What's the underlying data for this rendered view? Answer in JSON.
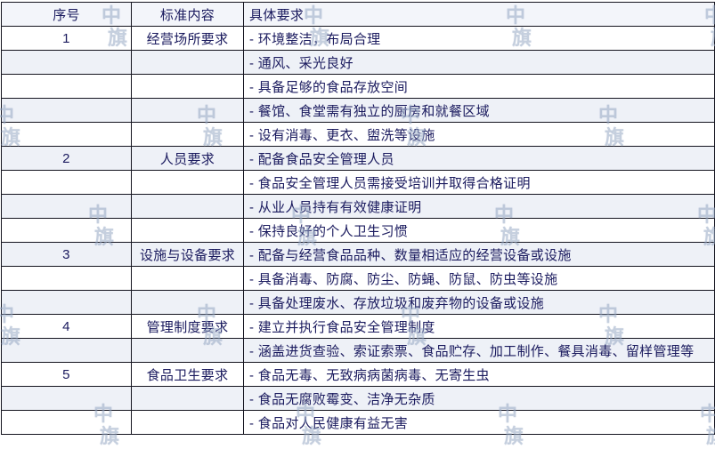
{
  "table": {
    "columns": [
      {
        "key": "serial",
        "label": "序号"
      },
      {
        "key": "category",
        "label": "标准内容"
      },
      {
        "key": "requirement",
        "label": "具体要求"
      }
    ],
    "rows": [
      {
        "serial": "1",
        "category": "经营场所要求",
        "requirement": "- 环境整洁，布局合理"
      },
      {
        "serial": "",
        "category": "",
        "requirement": "- 通风、采光良好"
      },
      {
        "serial": "",
        "category": "",
        "requirement": "- 具备足够的食品存放空间"
      },
      {
        "serial": "",
        "category": "",
        "requirement": "- 餐馆、食堂需有独立的厨房和就餐区域"
      },
      {
        "serial": "",
        "category": "",
        "requirement": "- 设有消毒、更衣、盥洗等设施"
      },
      {
        "serial": "2",
        "category": "人员要求",
        "requirement": "- 配备食品安全管理人员"
      },
      {
        "serial": "",
        "category": "",
        "requirement": "- 食品安全管理人员需接受培训并取得合格证明"
      },
      {
        "serial": "",
        "category": "",
        "requirement": "- 从业人员持有有效健康证明"
      },
      {
        "serial": "",
        "category": "",
        "requirement": "- 保持良好的个人卫生习惯"
      },
      {
        "serial": "3",
        "category": "设施与设备要求",
        "requirement": "- 配备与经营食品品种、数量相适应的经营设备或设施"
      },
      {
        "serial": "",
        "category": "",
        "requirement": "- 具备消毒、防腐、防尘、防蝇、防鼠、防虫等设施"
      },
      {
        "serial": "",
        "category": "",
        "requirement": "- 具备处理废水、存放垃圾和废弃物的设备或设施"
      },
      {
        "serial": "4",
        "category": "管理制度要求",
        "requirement": "- 建立并执行食品安全管理制度"
      },
      {
        "serial": "",
        "category": "",
        "requirement": "- 涵盖进货查验、索证索票、食品贮存、加工制作、餐具消毒、留样管理等"
      },
      {
        "serial": "5",
        "category": "食品卫生要求",
        "requirement": "- 食品无毒、无致病病菌病毒、无寄生虫"
      },
      {
        "serial": "",
        "category": "",
        "requirement": "- 食品无腐败霉变、洁净无杂质"
      },
      {
        "serial": "",
        "category": "",
        "requirement": "- 食品对人民健康有益无害"
      }
    ]
  },
  "watermark": {
    "text": "中旗",
    "char_top": "中",
    "char_bottom": "旗",
    "color": "#96a8c4"
  },
  "colors": {
    "border": "#14141f",
    "text": "#1a1a5e",
    "stripe": "#eef1f7",
    "header_bg": "#f3f5fa",
    "row_bg": "#ffffff",
    "watermark": "#96a8c4"
  }
}
